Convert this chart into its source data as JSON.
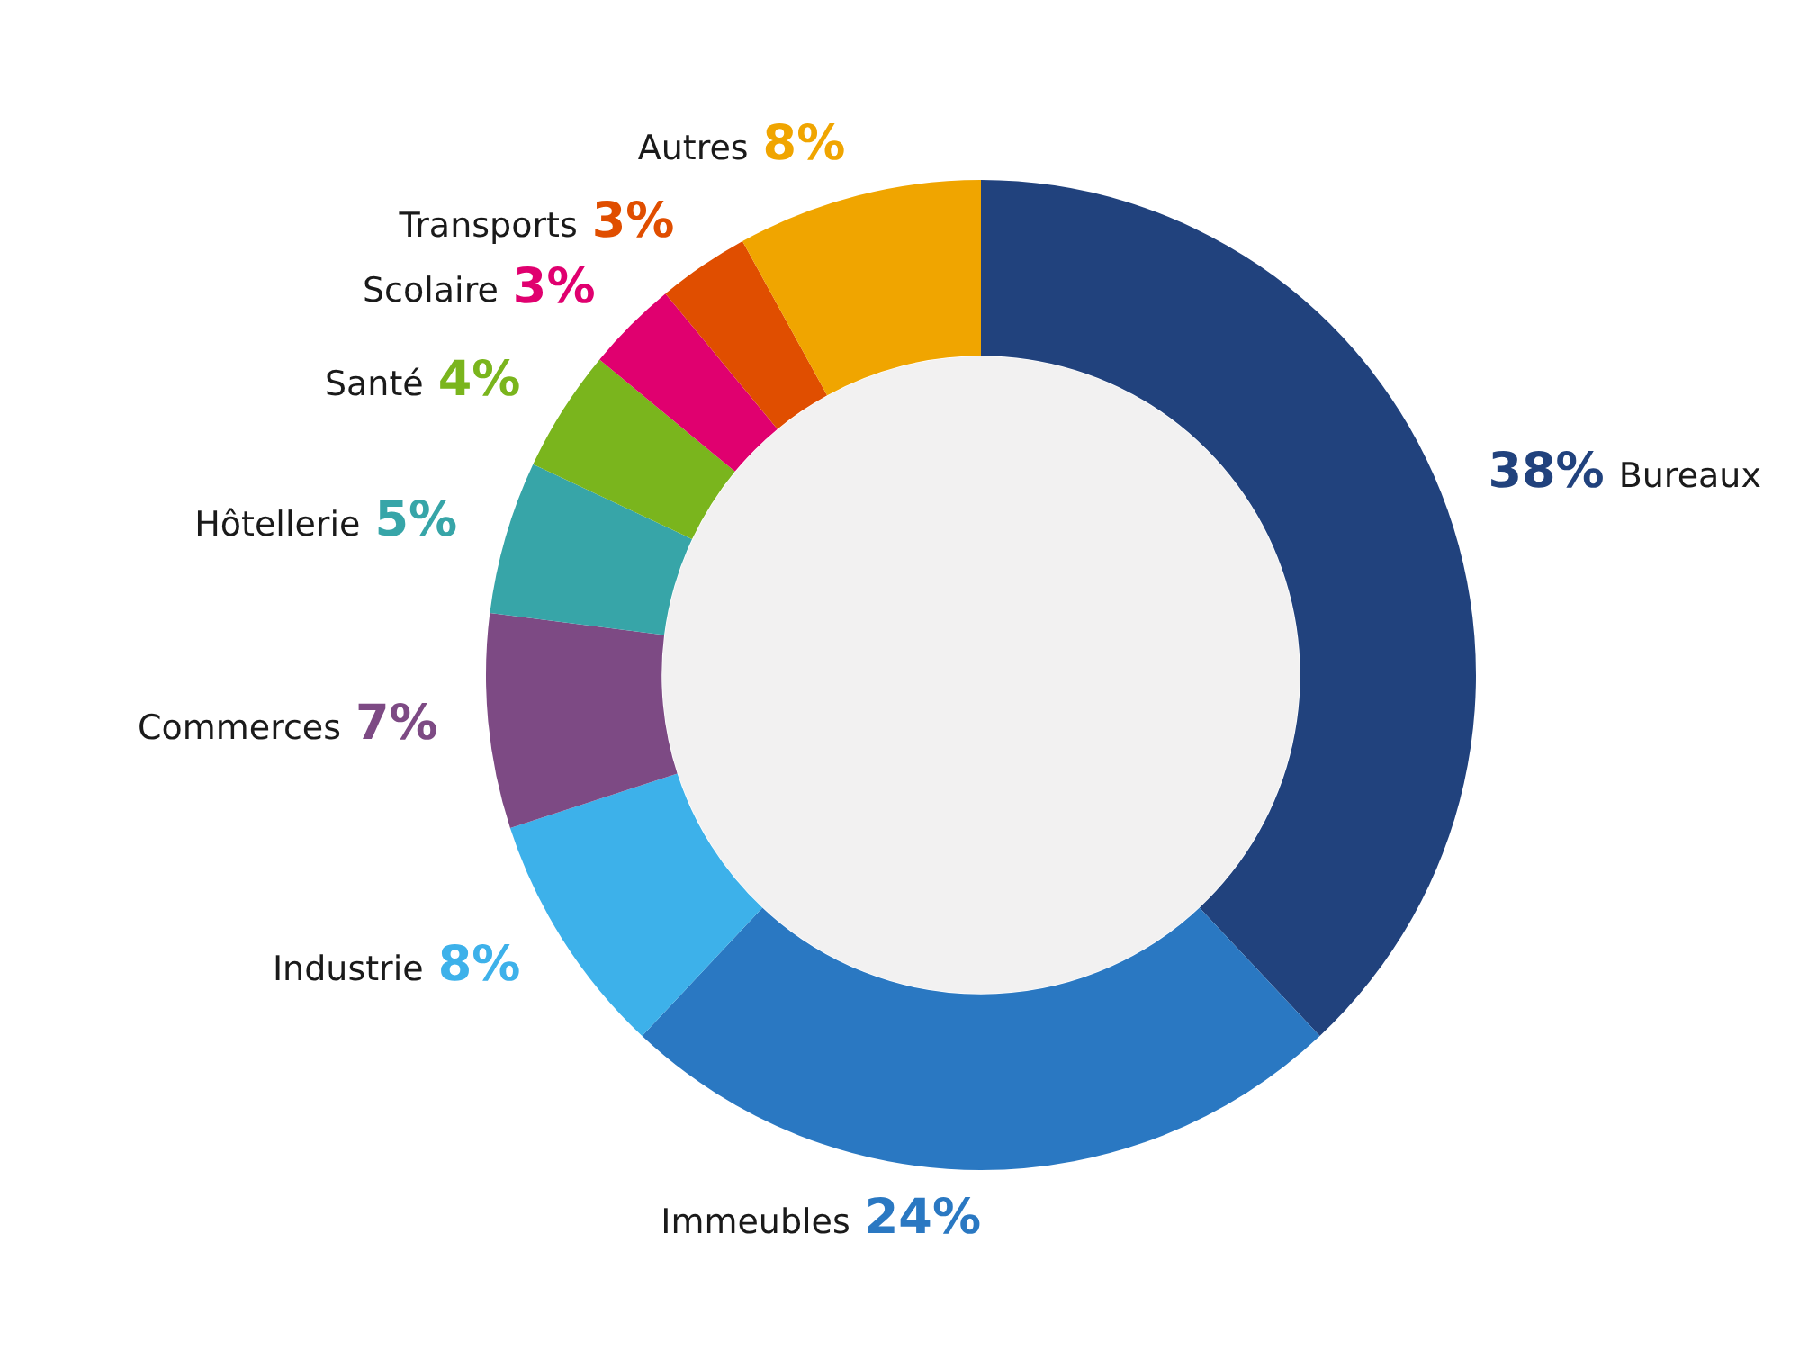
{
  "chart_data": {
    "type": "donut",
    "categories": [
      "Bureaux",
      "Immeubles",
      "Industrie",
      "Commerces",
      "Hôtellerie",
      "Santé",
      "Scolaire",
      "Transports",
      "Autres"
    ],
    "values": [
      38,
      24,
      8,
      7,
      5,
      4,
      3,
      3,
      8
    ],
    "value_labels": [
      "38%",
      "24%",
      "8%",
      "7%",
      "5%",
      "4%",
      "3%",
      "3%",
      "8%"
    ],
    "colors": [
      "#21427d",
      "#2a78c2",
      "#3db1ea",
      "#7d4a84",
      "#37a5a8",
      "#7ab51d",
      "#e0006f",
      "#e04e00",
      "#f0a500"
    ],
    "legend": false
  }
}
